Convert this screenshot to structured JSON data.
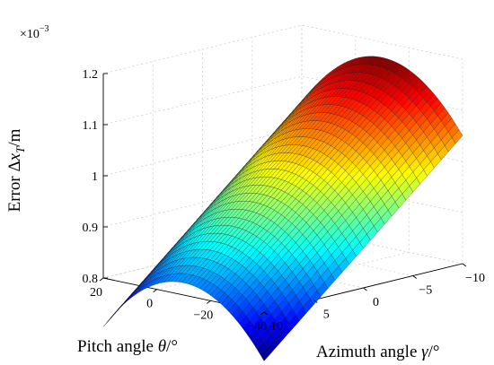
{
  "chart_data": {
    "type": "surface",
    "zlabel_main": "Error Δ",
    "zlabel_var": "x",
    "zlabel_sub": "T",
    "zlabel_unit": "/m",
    "xlabel_main": "Pitch angle ",
    "xlabel_sym": "θ",
    "xlabel_unit": "/°",
    "ylabel_main": "Azimuth angle ",
    "ylabel_sym": "γ",
    "ylabel_unit": "/°",
    "z_exponent_base": "×10",
    "z_exponent_power": "−3",
    "pitch_range": [
      -40,
      20
    ],
    "azimuth_range": [
      -10,
      10
    ],
    "z_range": [
      0.8,
      1.2
    ],
    "pitch_ticks": [
      20,
      0,
      -20,
      -40
    ],
    "pitch_tick_labels": [
      "20",
      "0",
      "−20",
      "−40"
    ],
    "azimuth_ticks": [
      10,
      5,
      0,
      -5,
      -10
    ],
    "azimuth_tick_labels": [
      "10",
      "5",
      "0",
      "−5",
      "−10"
    ],
    "z_ticks": [
      0.8,
      0.9,
      1.0,
      1.1,
      1.2
    ],
    "z_tick_labels": [
      "0.8",
      "0.9",
      "1",
      "1.1",
      "1.2"
    ],
    "surface_model": {
      "z_peak": 1.17,
      "peak_azimuth": -10,
      "slope_per_deg_azimuth": 0.0173,
      "peak_pitch": -10,
      "curvature_per_deg2_pitch": 0.000133
    },
    "colormap": "jet",
    "grid": true
  }
}
